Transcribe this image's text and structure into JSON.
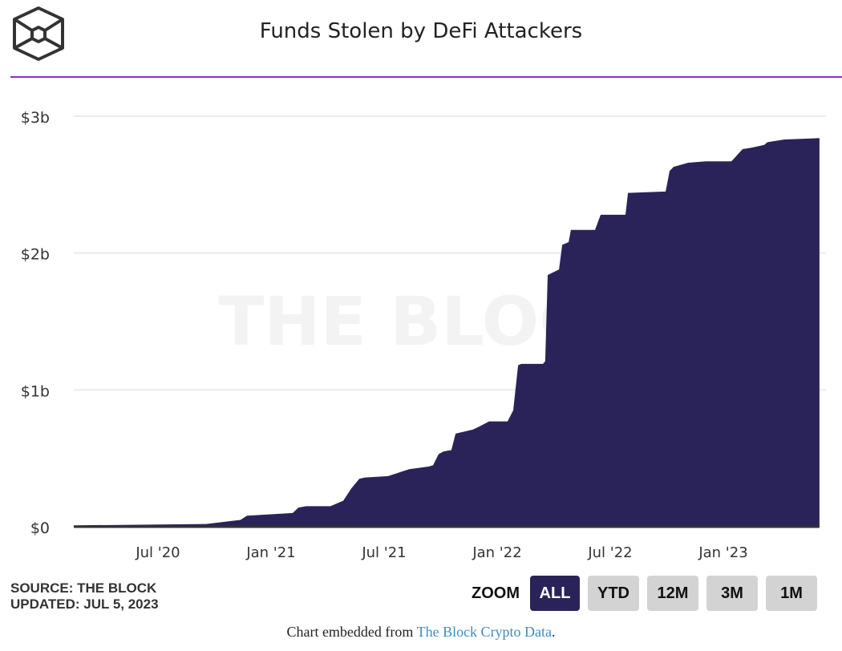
{
  "header": {
    "title": "Funds Stolen by DeFi Attackers",
    "logo_icon": "the-block-cube-logo-icon",
    "accent_color": "#8a2be2"
  },
  "chart_data": {
    "type": "area",
    "title": "Funds Stolen by DeFi Attackers",
    "xlabel": "",
    "ylabel": "",
    "fill_color": "#2a2359",
    "watermark": "THE BLOCK",
    "grid": true,
    "x_unit": "months since Jan 2020",
    "x_range": [
      1.5,
      41.1
    ],
    "ylim": [
      0,
      3
    ],
    "y_ticks": [
      {
        "value": 0,
        "label": "$0"
      },
      {
        "value": 1,
        "label": "$1b"
      },
      {
        "value": 2,
        "label": "$2b"
      },
      {
        "value": 3,
        "label": "$3b"
      }
    ],
    "x_ticks": [
      {
        "value": 6,
        "label": "Jul '20"
      },
      {
        "value": 12,
        "label": "Jan '21"
      },
      {
        "value": 18,
        "label": "Jul '21"
      },
      {
        "value": 24,
        "label": "Jan '22"
      },
      {
        "value": 30,
        "label": "Jul '22"
      },
      {
        "value": 36,
        "label": "Jan '23"
      }
    ],
    "series": [
      {
        "name": "Funds Stolen (cumulative, $b)",
        "points": [
          [
            1.53,
            0.01
          ],
          [
            8.55,
            0.02
          ],
          [
            9.74,
            0.04
          ],
          [
            10.38,
            0.05
          ],
          [
            10.72,
            0.08
          ],
          [
            13.15,
            0.1
          ],
          [
            13.45,
            0.14
          ],
          [
            13.87,
            0.15
          ],
          [
            15.15,
            0.15
          ],
          [
            15.83,
            0.19
          ],
          [
            16.26,
            0.28
          ],
          [
            16.68,
            0.35
          ],
          [
            16.98,
            0.36
          ],
          [
            18.21,
            0.37
          ],
          [
            19.32,
            0.42
          ],
          [
            20.38,
            0.44
          ],
          [
            20.6,
            0.45
          ],
          [
            20.89,
            0.53
          ],
          [
            21.15,
            0.55
          ],
          [
            21.57,
            0.56
          ],
          [
            21.79,
            0.68
          ],
          [
            22.72,
            0.71
          ],
          [
            23.02,
            0.73
          ],
          [
            23.57,
            0.77
          ],
          [
            24.55,
            0.77
          ],
          [
            24.85,
            0.85
          ],
          [
            25.11,
            1.18
          ],
          [
            25.28,
            1.19
          ],
          [
            26.43,
            1.19
          ],
          [
            26.55,
            1.21
          ],
          [
            26.68,
            1.84
          ],
          [
            27.28,
            1.88
          ],
          [
            27.45,
            2.06
          ],
          [
            27.79,
            2.08
          ],
          [
            27.91,
            2.17
          ],
          [
            29.19,
            2.17
          ],
          [
            29.49,
            2.28
          ],
          [
            30.81,
            2.28
          ],
          [
            30.94,
            2.44
          ],
          [
            32.94,
            2.45
          ],
          [
            33.15,
            2.6
          ],
          [
            33.36,
            2.63
          ],
          [
            34.13,
            2.66
          ],
          [
            35.06,
            2.67
          ],
          [
            36.43,
            2.67
          ],
          [
            37.02,
            2.76
          ],
          [
            37.49,
            2.77
          ],
          [
            38.17,
            2.79
          ],
          [
            38.34,
            2.81
          ],
          [
            39.23,
            2.83
          ],
          [
            41.1,
            2.84
          ]
        ]
      }
    ]
  },
  "footer": {
    "source": "SOURCE: THE BLOCK",
    "updated": "UPDATED: JUL 5, 2023",
    "zoom_label": "ZOOM",
    "zoom_buttons": [
      {
        "label": "ALL",
        "active": true
      },
      {
        "label": "YTD",
        "active": false
      },
      {
        "label": "12M",
        "active": false
      },
      {
        "label": "3M",
        "active": false
      },
      {
        "label": "1M",
        "active": false
      }
    ],
    "embed_prefix": "Chart embedded from ",
    "embed_link": "The Block Crypto Data",
    "embed_suffix": "."
  }
}
